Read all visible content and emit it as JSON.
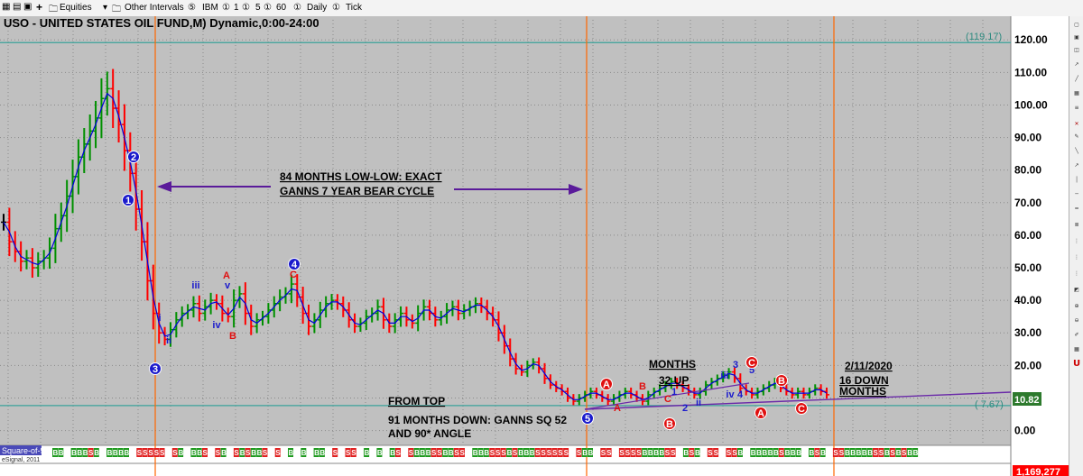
{
  "toolbar": {
    "items": [
      "Equities",
      "Other Intervals",
      "IBM",
      "1",
      "5",
      "60",
      "Daily",
      "Tick"
    ],
    "symbols": [
      "⑤",
      "①",
      "①",
      "①",
      "①",
      "①"
    ]
  },
  "colors": {
    "background": "#c0c0c0",
    "up": "#009000",
    "down": "#ff0000",
    "neutral": "#000000",
    "cycle_line": "#ff6600",
    "level_line": "#3aa39a",
    "arrow": "#5a1a9a",
    "trend": "#6a2aa8"
  },
  "chart_data": {
    "type": "bar",
    "title": "USO - UNITED STATES OIL FUND,M) Dynamic,0:00-24:00",
    "ylim": [
      -1.5,
      122
    ],
    "y_ticks": [
      "120.00",
      "110.00",
      "100.00",
      "90.00",
      "80.00",
      "70.00",
      "60.00",
      "50.00",
      "40.00",
      "30.00",
      "20.00",
      "10.00",
      "0.00"
    ],
    "y_tick_values": [
      120,
      110,
      100,
      90,
      80,
      70,
      60,
      50,
      40,
      30,
      20,
      10,
      0
    ],
    "levels": [
      {
        "label": "(119.17)",
        "value": 119.17
      },
      {
        "label": "( 7.67)",
        "value": 7.67
      }
    ],
    "last_price": "10.82",
    "bottom_value": "1,169,277",
    "closes": [
      64,
      58,
      55,
      52,
      53,
      50,
      52,
      53,
      56,
      62,
      66,
      72,
      78,
      84,
      88,
      92,
      96,
      102,
      105,
      99,
      94,
      86,
      79,
      68,
      58,
      46,
      36,
      30,
      28,
      31,
      34,
      36,
      37,
      39,
      36,
      38,
      40,
      39,
      36,
      35,
      40,
      42,
      36,
      32,
      34,
      35,
      37,
      39,
      41,
      42,
      45,
      41,
      36,
      32,
      34,
      37,
      39,
      40,
      39,
      37,
      34,
      32,
      33,
      35,
      36,
      38,
      34,
      32,
      34,
      36,
      34,
      33,
      36,
      38,
      36,
      34,
      35,
      37,
      38,
      36,
      37,
      38,
      39,
      38,
      36,
      34,
      30,
      26,
      22,
      19,
      18,
      20,
      21,
      19,
      16,
      14,
      13,
      12,
      10,
      9,
      10,
      11,
      12,
      11,
      10,
      9,
      10,
      11,
      12,
      11,
      10,
      9,
      11,
      12,
      13,
      14,
      15,
      14,
      13,
      12,
      11,
      12,
      14,
      15,
      16,
      17,
      18,
      16,
      13,
      12,
      11,
      12,
      13,
      14,
      15,
      13,
      12,
      11,
      12,
      11,
      12,
      13,
      12,
      11
    ],
    "x_labels_bottom": [
      "BB",
      "BBBSB",
      "BBBB",
      "SSSSS",
      "SB",
      "BBS",
      "SB",
      "SBSBBS",
      "S",
      "B",
      "B",
      "BB",
      "S",
      "SS",
      "B",
      "B",
      "BS",
      "SBBBSSBBSS",
      "BBBSSSBSBBBSSSSSS",
      "SBB",
      "SS",
      "SSSSBBBBSS",
      "BSB",
      "SS",
      "SSB",
      "BBBBBSBBB",
      "BSB",
      "SSBBBBBSSBSBSBB"
    ],
    "cycle_lines": [
      "left",
      "middle",
      "right"
    ],
    "annotations": {
      "cycle_line1": "84 MONTHS LOW-LOW: EXACT",
      "cycle_line2": "GANNS 7 YEAR BEAR CYCLE",
      "from_top": "FROM TOP",
      "months_down1": "91 MONTHS DOWN: GANNS SQ 52",
      "months_down2": "AND 90* ANGLE",
      "months": "MONTHS",
      "up32": "32 UP",
      "date": "2/11/2020",
      "down16a": "16 DOWN",
      "down16b": "MONTHS",
      "square": "Square-of-9",
      "signal": "eSignal, 2011"
    },
    "wave_labels": [
      {
        "text": "2",
        "shape": "circle-blue"
      },
      {
        "text": "1",
        "shape": "circle-blue"
      },
      {
        "text": "3",
        "shape": "circle-blue"
      },
      {
        "text": "4",
        "shape": "circle-blue"
      },
      {
        "text": "5",
        "shape": "circle-blue"
      },
      {
        "text": "i",
        "shape": "blue"
      },
      {
        "text": "ii",
        "shape": "blue"
      },
      {
        "text": "iii",
        "shape": "blue"
      },
      {
        "text": "iv",
        "shape": "blue"
      },
      {
        "text": "v",
        "shape": "blue"
      },
      {
        "text": "A",
        "shape": "red"
      },
      {
        "text": "B",
        "shape": "red"
      },
      {
        "text": "C",
        "shape": "red"
      },
      {
        "text": "A",
        "shape": "circle-red"
      },
      {
        "text": "A",
        "shape": "red"
      },
      {
        "text": "B",
        "shape": "red"
      },
      {
        "text": "C",
        "shape": "red"
      },
      {
        "text": "B",
        "shape": "circle-red"
      },
      {
        "text": "1",
        "shape": "blue"
      },
      {
        "text": "2",
        "shape": "blue"
      },
      {
        "text": "ii",
        "shape": "blue"
      },
      {
        "text": "3",
        "shape": "blue"
      },
      {
        "text": "iii",
        "shape": "blue"
      },
      {
        "text": "iv",
        "shape": "blue"
      },
      {
        "text": "4",
        "shape": "blue"
      },
      {
        "text": "5",
        "shape": "blue"
      },
      {
        "text": "C",
        "shape": "circle-red"
      },
      {
        "text": "B",
        "shape": "circle-red"
      },
      {
        "text": "A",
        "shape": "circle-red"
      },
      {
        "text": "C",
        "shape": "circle-red"
      }
    ]
  }
}
